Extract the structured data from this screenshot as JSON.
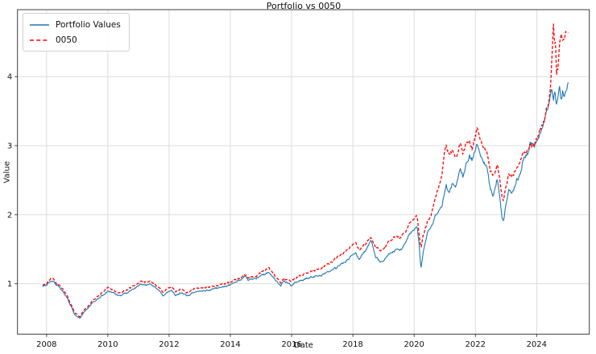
{
  "chart_data": {
    "type": "line",
    "title": "Portfolio vs 0050",
    "xlabel": "Date",
    "ylabel": "Value",
    "xlim": [
      2007.05,
      2025.72
    ],
    "ylim": [
      0.27,
      4.97
    ],
    "x_ticks": [
      "2008",
      "2010",
      "2012",
      "2014",
      "2016",
      "2018",
      "2020",
      "2022",
      "2024"
    ],
    "x_tick_values": [
      2008,
      2010,
      2012,
      2014,
      2016,
      2018,
      2020,
      2022,
      2024
    ],
    "y_ticks": [
      "1",
      "2",
      "3",
      "4"
    ],
    "y_tick_values": [
      1,
      2,
      3,
      4
    ],
    "grid": true,
    "grid_color": "#d8d8d8",
    "spine_color": "#3c3c3c",
    "legend_position": "upper-left",
    "series": [
      {
        "name": "Portfolio Values",
        "color": "#1f77b4",
        "style": "solid",
        "points": [
          [
            2007.87,
            0.97
          ],
          [
            2008.0,
            0.99
          ],
          [
            2008.1,
            1.01
          ],
          [
            2008.18,
            1.05
          ],
          [
            2008.3,
            0.99
          ],
          [
            2008.45,
            0.94
          ],
          [
            2008.55,
            0.87
          ],
          [
            2008.7,
            0.77
          ],
          [
            2008.8,
            0.68
          ],
          [
            2008.9,
            0.57
          ],
          [
            2009.0,
            0.52
          ],
          [
            2009.08,
            0.5
          ],
          [
            2009.15,
            0.54
          ],
          [
            2009.25,
            0.6
          ],
          [
            2009.4,
            0.67
          ],
          [
            2009.5,
            0.72
          ],
          [
            2009.65,
            0.77
          ],
          [
            2009.8,
            0.82
          ],
          [
            2009.95,
            0.87
          ],
          [
            2010.0,
            0.9
          ],
          [
            2010.2,
            0.87
          ],
          [
            2010.35,
            0.82
          ],
          [
            2010.5,
            0.84
          ],
          [
            2010.7,
            0.89
          ],
          [
            2010.85,
            0.93
          ],
          [
            2011.0,
            0.96
          ],
          [
            2011.1,
            0.99
          ],
          [
            2011.25,
            0.98
          ],
          [
            2011.4,
            1.01
          ],
          [
            2011.55,
            0.94
          ],
          [
            2011.7,
            0.88
          ],
          [
            2011.8,
            0.83
          ],
          [
            2011.95,
            0.88
          ],
          [
            2012.1,
            0.9
          ],
          [
            2012.2,
            0.82
          ],
          [
            2012.35,
            0.87
          ],
          [
            2012.5,
            0.85
          ],
          [
            2012.6,
            0.82
          ],
          [
            2012.75,
            0.86
          ],
          [
            2012.9,
            0.88
          ],
          [
            2013.1,
            0.9
          ],
          [
            2013.3,
            0.91
          ],
          [
            2013.5,
            0.93
          ],
          [
            2013.7,
            0.95
          ],
          [
            2013.9,
            0.97
          ],
          [
            2014.0,
            0.99
          ],
          [
            2014.2,
            1.03
          ],
          [
            2014.4,
            1.07
          ],
          [
            2014.5,
            1.1
          ],
          [
            2014.6,
            1.05
          ],
          [
            2014.75,
            1.08
          ],
          [
            2014.9,
            1.09
          ],
          [
            2015.1,
            1.14
          ],
          [
            2015.25,
            1.16
          ],
          [
            2015.4,
            1.09
          ],
          [
            2015.55,
            1.01
          ],
          [
            2015.65,
            0.97
          ],
          [
            2015.75,
            1.04
          ],
          [
            2015.9,
            1.01
          ],
          [
            2016.0,
            0.97
          ],
          [
            2016.1,
            1.01
          ],
          [
            2016.3,
            1.05
          ],
          [
            2016.5,
            1.08
          ],
          [
            2016.7,
            1.1
          ],
          [
            2016.9,
            1.12
          ],
          [
            2017.1,
            1.15
          ],
          [
            2017.3,
            1.19
          ],
          [
            2017.5,
            1.24
          ],
          [
            2017.7,
            1.3
          ],
          [
            2017.85,
            1.36
          ],
          [
            2018.0,
            1.42
          ],
          [
            2018.08,
            1.46
          ],
          [
            2018.2,
            1.35
          ],
          [
            2018.35,
            1.45
          ],
          [
            2018.5,
            1.55
          ],
          [
            2018.6,
            1.64
          ],
          [
            2018.75,
            1.38
          ],
          [
            2018.9,
            1.3
          ],
          [
            2019.0,
            1.33
          ],
          [
            2019.15,
            1.42
          ],
          [
            2019.3,
            1.45
          ],
          [
            2019.45,
            1.5
          ],
          [
            2019.55,
            1.48
          ],
          [
            2019.7,
            1.58
          ],
          [
            2019.85,
            1.72
          ],
          [
            2020.0,
            1.78
          ],
          [
            2020.1,
            1.81
          ],
          [
            2020.16,
            1.6
          ],
          [
            2020.22,
            1.22
          ],
          [
            2020.3,
            1.48
          ],
          [
            2020.45,
            1.75
          ],
          [
            2020.55,
            1.8
          ],
          [
            2020.7,
            2.0
          ],
          [
            2020.8,
            2.05
          ],
          [
            2020.9,
            2.12
          ],
          [
            2021.0,
            2.3
          ],
          [
            2021.05,
            2.42
          ],
          [
            2021.15,
            2.3
          ],
          [
            2021.25,
            2.45
          ],
          [
            2021.35,
            2.38
          ],
          [
            2021.45,
            2.6
          ],
          [
            2021.5,
            2.65
          ],
          [
            2021.6,
            2.55
          ],
          [
            2021.7,
            2.72
          ],
          [
            2021.8,
            2.85
          ],
          [
            2021.9,
            2.78
          ],
          [
            2022.0,
            2.95
          ],
          [
            2022.05,
            3.03
          ],
          [
            2022.15,
            2.88
          ],
          [
            2022.25,
            2.8
          ],
          [
            2022.35,
            2.72
          ],
          [
            2022.5,
            2.35
          ],
          [
            2022.6,
            2.28
          ],
          [
            2022.7,
            2.5
          ],
          [
            2022.8,
            2.25
          ],
          [
            2022.88,
            1.95
          ],
          [
            2022.92,
            1.91
          ],
          [
            2023.0,
            2.15
          ],
          [
            2023.1,
            2.37
          ],
          [
            2023.2,
            2.32
          ],
          [
            2023.35,
            2.5
          ],
          [
            2023.5,
            2.65
          ],
          [
            2023.6,
            2.88
          ],
          [
            2023.7,
            2.85
          ],
          [
            2023.8,
            3.05
          ],
          [
            2023.9,
            3.0
          ],
          [
            2024.0,
            3.08
          ],
          [
            2024.1,
            3.18
          ],
          [
            2024.2,
            3.3
          ],
          [
            2024.3,
            3.42
          ],
          [
            2024.4,
            3.58
          ],
          [
            2024.45,
            3.7
          ],
          [
            2024.5,
            3.86
          ],
          [
            2024.55,
            3.65
          ],
          [
            2024.6,
            3.78
          ],
          [
            2024.65,
            3.58
          ],
          [
            2024.7,
            3.72
          ],
          [
            2024.75,
            3.85
          ],
          [
            2024.8,
            3.65
          ],
          [
            2024.85,
            3.78
          ],
          [
            2024.9,
            3.74
          ],
          [
            2024.95,
            3.82
          ],
          [
            2025.03,
            3.85
          ]
        ]
      },
      {
        "name": "0050",
        "color": "#ff0000",
        "style": "dashed",
        "points": [
          [
            2007.87,
            0.99
          ],
          [
            2008.0,
            1.01
          ],
          [
            2008.1,
            1.04
          ],
          [
            2008.18,
            1.09
          ],
          [
            2008.3,
            1.02
          ],
          [
            2008.45,
            0.97
          ],
          [
            2008.55,
            0.9
          ],
          [
            2008.7,
            0.8
          ],
          [
            2008.8,
            0.7
          ],
          [
            2008.9,
            0.6
          ],
          [
            2009.0,
            0.55
          ],
          [
            2009.08,
            0.52
          ],
          [
            2009.15,
            0.57
          ],
          [
            2009.25,
            0.63
          ],
          [
            2009.4,
            0.7
          ],
          [
            2009.5,
            0.75
          ],
          [
            2009.65,
            0.81
          ],
          [
            2009.8,
            0.86
          ],
          [
            2009.95,
            0.92
          ],
          [
            2010.0,
            0.95
          ],
          [
            2010.2,
            0.91
          ],
          [
            2010.35,
            0.86
          ],
          [
            2010.5,
            0.88
          ],
          [
            2010.7,
            0.93
          ],
          [
            2010.85,
            0.97
          ],
          [
            2011.0,
            1.0
          ],
          [
            2011.1,
            1.03
          ],
          [
            2011.25,
            1.02
          ],
          [
            2011.4,
            1.05
          ],
          [
            2011.55,
            0.98
          ],
          [
            2011.7,
            0.93
          ],
          [
            2011.8,
            0.88
          ],
          [
            2011.95,
            0.93
          ],
          [
            2012.1,
            0.95
          ],
          [
            2012.2,
            0.88
          ],
          [
            2012.35,
            0.92
          ],
          [
            2012.5,
            0.9
          ],
          [
            2012.6,
            0.87
          ],
          [
            2012.75,
            0.91
          ],
          [
            2012.9,
            0.93
          ],
          [
            2013.1,
            0.95
          ],
          [
            2013.3,
            0.96
          ],
          [
            2013.5,
            0.97
          ],
          [
            2013.7,
            0.99
          ],
          [
            2013.9,
            1.01
          ],
          [
            2014.0,
            1.02
          ],
          [
            2014.2,
            1.06
          ],
          [
            2014.4,
            1.1
          ],
          [
            2014.5,
            1.13
          ],
          [
            2014.6,
            1.08
          ],
          [
            2014.75,
            1.11
          ],
          [
            2014.9,
            1.13
          ],
          [
            2015.1,
            1.2
          ],
          [
            2015.25,
            1.22
          ],
          [
            2015.4,
            1.15
          ],
          [
            2015.55,
            1.06
          ],
          [
            2015.65,
            1.01
          ],
          [
            2015.75,
            1.08
          ],
          [
            2015.9,
            1.06
          ],
          [
            2016.0,
            1.04
          ],
          [
            2016.1,
            1.07
          ],
          [
            2016.3,
            1.12
          ],
          [
            2016.5,
            1.16
          ],
          [
            2016.7,
            1.19
          ],
          [
            2016.9,
            1.22
          ],
          [
            2017.1,
            1.26
          ],
          [
            2017.3,
            1.31
          ],
          [
            2017.5,
            1.38
          ],
          [
            2017.7,
            1.44
          ],
          [
            2017.85,
            1.5
          ],
          [
            2018.0,
            1.56
          ],
          [
            2018.08,
            1.6
          ],
          [
            2018.2,
            1.48
          ],
          [
            2018.35,
            1.56
          ],
          [
            2018.5,
            1.62
          ],
          [
            2018.6,
            1.67
          ],
          [
            2018.75,
            1.52
          ],
          [
            2018.9,
            1.46
          ],
          [
            2019.0,
            1.5
          ],
          [
            2019.15,
            1.6
          ],
          [
            2019.3,
            1.65
          ],
          [
            2019.45,
            1.68
          ],
          [
            2019.55,
            1.66
          ],
          [
            2019.7,
            1.75
          ],
          [
            2019.85,
            1.88
          ],
          [
            2020.0,
            1.93
          ],
          [
            2020.1,
            1.96
          ],
          [
            2020.16,
            1.75
          ],
          [
            2020.22,
            1.52
          ],
          [
            2020.3,
            1.72
          ],
          [
            2020.45,
            1.9
          ],
          [
            2020.55,
            1.96
          ],
          [
            2020.7,
            2.28
          ],
          [
            2020.8,
            2.38
          ],
          [
            2020.9,
            2.55
          ],
          [
            2021.0,
            2.9
          ],
          [
            2021.05,
            3.0
          ],
          [
            2021.15,
            2.85
          ],
          [
            2021.25,
            2.95
          ],
          [
            2021.35,
            2.82
          ],
          [
            2021.45,
            2.95
          ],
          [
            2021.5,
            3.0
          ],
          [
            2021.6,
            2.9
          ],
          [
            2021.7,
            3.02
          ],
          [
            2021.8,
            3.05
          ],
          [
            2021.9,
            2.96
          ],
          [
            2022.0,
            3.15
          ],
          [
            2022.05,
            3.27
          ],
          [
            2022.15,
            3.1
          ],
          [
            2022.25,
            3.02
          ],
          [
            2022.35,
            2.95
          ],
          [
            2022.5,
            2.62
          ],
          [
            2022.6,
            2.55
          ],
          [
            2022.7,
            2.72
          ],
          [
            2022.8,
            2.5
          ],
          [
            2022.88,
            2.25
          ],
          [
            2022.92,
            2.2
          ],
          [
            2023.0,
            2.42
          ],
          [
            2023.1,
            2.6
          ],
          [
            2023.2,
            2.56
          ],
          [
            2023.35,
            2.68
          ],
          [
            2023.5,
            2.8
          ],
          [
            2023.6,
            2.95
          ],
          [
            2023.7,
            2.9
          ],
          [
            2023.8,
            3.02
          ],
          [
            2023.9,
            3.0
          ],
          [
            2024.0,
            3.1
          ],
          [
            2024.1,
            3.22
          ],
          [
            2024.2,
            3.32
          ],
          [
            2024.3,
            3.45
          ],
          [
            2024.4,
            3.62
          ],
          [
            2024.45,
            3.85
          ],
          [
            2024.5,
            4.3
          ],
          [
            2024.55,
            4.75
          ],
          [
            2024.58,
            4.4
          ],
          [
            2024.62,
            4.55
          ],
          [
            2024.65,
            4.05
          ],
          [
            2024.7,
            4.18
          ],
          [
            2024.75,
            4.48
          ],
          [
            2024.8,
            4.62
          ],
          [
            2024.85,
            4.5
          ],
          [
            2024.9,
            4.6
          ],
          [
            2024.95,
            4.68
          ],
          [
            2025.03,
            4.6
          ]
        ]
      }
    ]
  }
}
